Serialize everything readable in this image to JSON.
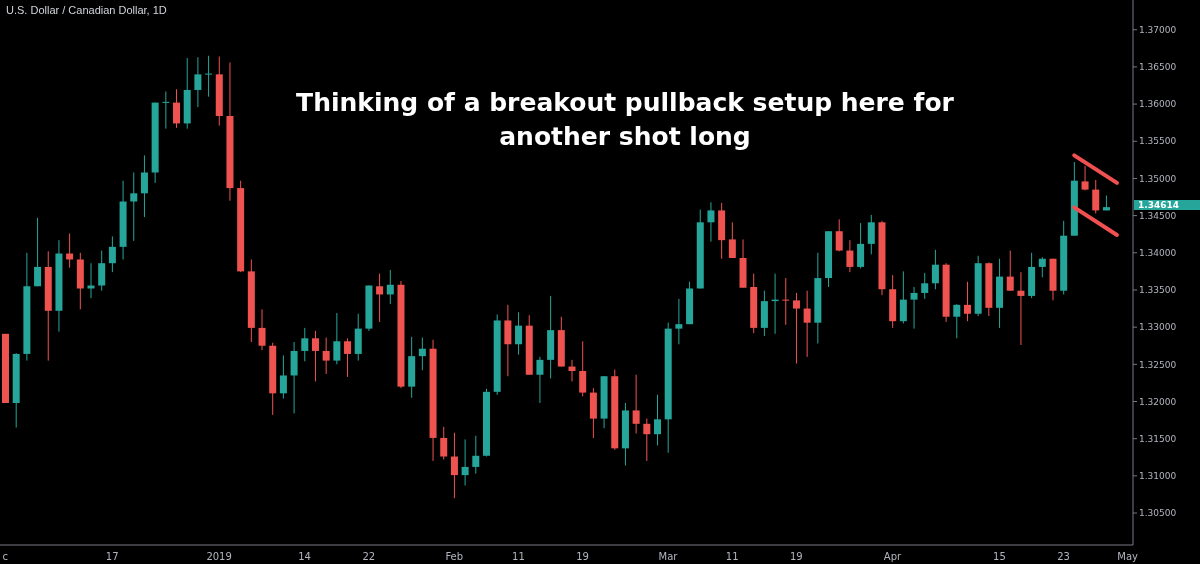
{
  "chart_data": {
    "type": "candlestick",
    "title": "U.S. Dollar / Canadian Dollar, 1D",
    "annotations": [
      "Thinking of a breakout pullback setup here for another shot long",
      "1.34614"
    ],
    "categories": [
      "c",
      null,
      null,
      null,
      null,
      null,
      null,
      null,
      null,
      null,
      "17",
      null,
      null,
      null,
      null,
      null,
      null,
      null,
      null,
      null,
      "2019",
      null,
      null,
      null,
      null,
      null,
      null,
      null,
      "14",
      null,
      null,
      null,
      null,
      null,
      "22",
      null,
      null,
      null,
      null,
      null,
      null,
      null,
      "Feb",
      null,
      null,
      null,
      null,
      null,
      "11",
      null,
      null,
      null,
      null,
      null,
      "19",
      null,
      null,
      null,
      null,
      null,
      null,
      null,
      "Mar",
      null,
      null,
      null,
      null,
      null,
      "11",
      null,
      null,
      null,
      null,
      null,
      "19",
      null,
      null,
      null,
      null,
      null,
      null,
      null,
      null,
      "Apr",
      null,
      null,
      null,
      null,
      null,
      null,
      null,
      null,
      null,
      "15",
      null,
      null,
      null,
      null,
      null,
      "23",
      null,
      null,
      null,
      null,
      null,
      "May"
    ],
    "ohlc": [
      [
        1.3291,
        1.3291,
        1.3198,
        1.3198
      ],
      [
        1.3198,
        1.3265,
        1.3165,
        1.3264
      ],
      [
        1.3264,
        1.34,
        1.3255,
        1.3355
      ],
      [
        1.3355,
        1.3447,
        1.3355,
        1.3381
      ],
      [
        1.3381,
        1.3402,
        1.3255,
        1.3322
      ],
      [
        1.3322,
        1.3417,
        1.3294,
        1.3399
      ],
      [
        1.3399,
        1.3426,
        1.338,
        1.3391
      ],
      [
        1.3391,
        1.34,
        1.3324,
        1.3352
      ],
      [
        1.3352,
        1.3386,
        1.3339,
        1.3356
      ],
      [
        1.3356,
        1.3403,
        1.3349,
        1.3386
      ],
      [
        1.3386,
        1.3422,
        1.3374,
        1.3408
      ],
      [
        1.3408,
        1.3497,
        1.3391,
        1.3469
      ],
      [
        1.3469,
        1.3508,
        1.3416,
        1.348
      ],
      [
        1.348,
        1.3531,
        1.3448,
        1.3508
      ],
      [
        1.3508,
        1.3602,
        1.3494,
        1.3602
      ],
      [
        1.3602,
        1.3617,
        1.3567,
        1.3603
      ],
      [
        1.3602,
        1.362,
        1.3568,
        1.3574
      ],
      [
        1.3574,
        1.3662,
        1.3567,
        1.3619
      ],
      [
        1.3619,
        1.3663,
        1.3596,
        1.364
      ],
      [
        1.364,
        1.3665,
        1.361,
        1.3641
      ],
      [
        1.364,
        1.3664,
        1.3571,
        1.3584
      ],
      [
        1.3584,
        1.3656,
        1.347,
        1.3487
      ],
      [
        1.3487,
        1.3497,
        1.3374,
        1.3375
      ],
      [
        1.3375,
        1.3391,
        1.328,
        1.3299
      ],
      [
        1.3299,
        1.3324,
        1.3269,
        1.3275
      ],
      [
        1.3275,
        1.3279,
        1.3182,
        1.3211
      ],
      [
        1.3211,
        1.3262,
        1.3204,
        1.3235
      ],
      [
        1.3235,
        1.328,
        1.3184,
        1.3268
      ],
      [
        1.3268,
        1.3299,
        1.3254,
        1.3285
      ],
      [
        1.3285,
        1.3295,
        1.3227,
        1.3268
      ],
      [
        1.3268,
        1.3286,
        1.3237,
        1.3255
      ],
      [
        1.3255,
        1.3319,
        1.325,
        1.3281
      ],
      [
        1.3281,
        1.3285,
        1.3233,
        1.3264
      ],
      [
        1.3264,
        1.3318,
        1.3255,
        1.3298
      ],
      [
        1.3298,
        1.3356,
        1.3295,
        1.3356
      ],
      [
        1.3355,
        1.3372,
        1.3307,
        1.3344
      ],
      [
        1.3344,
        1.3377,
        1.3331,
        1.3357
      ],
      [
        1.3357,
        1.3362,
        1.3218,
        1.322
      ],
      [
        1.322,
        1.3287,
        1.3205,
        1.3261
      ],
      [
        1.3261,
        1.3286,
        1.3242,
        1.3271
      ],
      [
        1.3271,
        1.3283,
        1.312,
        1.3151
      ],
      [
        1.3151,
        1.3166,
        1.3122,
        1.3126
      ],
      [
        1.3126,
        1.3158,
        1.307,
        1.3101
      ],
      [
        1.3101,
        1.3149,
        1.3087,
        1.3112
      ],
      [
        1.3112,
        1.3154,
        1.3103,
        1.3127
      ],
      [
        1.3127,
        1.3217,
        1.3126,
        1.3213
      ],
      [
        1.3213,
        1.3317,
        1.3209,
        1.3309
      ],
      [
        1.3309,
        1.333,
        1.3234,
        1.3277
      ],
      [
        1.3277,
        1.332,
        1.3263,
        1.3302
      ],
      [
        1.3302,
        1.3316,
        1.3236,
        1.3236
      ],
      [
        1.3236,
        1.326,
        1.3198,
        1.3256
      ],
      [
        1.3256,
        1.3342,
        1.3231,
        1.3296
      ],
      [
        1.3296,
        1.3314,
        1.3247,
        1.3247
      ],
      [
        1.3247,
        1.3256,
        1.3227,
        1.3241
      ],
      [
        1.3241,
        1.3281,
        1.3207,
        1.3212
      ],
      [
        1.3212,
        1.3218,
        1.3151,
        1.3177
      ],
      [
        1.3177,
        1.3234,
        1.3164,
        1.3234
      ],
      [
        1.3234,
        1.3243,
        1.3135,
        1.3137
      ],
      [
        1.3137,
        1.3198,
        1.3114,
        1.3188
      ],
      [
        1.3188,
        1.3236,
        1.3157,
        1.317
      ],
      [
        1.317,
        1.3177,
        1.312,
        1.3156
      ],
      [
        1.3156,
        1.3209,
        1.3141,
        1.3176
      ],
      [
        1.3176,
        1.3306,
        1.3131,
        1.3298
      ],
      [
        1.3298,
        1.3338,
        1.3277,
        1.3304
      ],
      [
        1.3304,
        1.3361,
        1.3304,
        1.3352
      ],
      [
        1.3352,
        1.3458,
        1.3352,
        1.3441
      ],
      [
        1.3441,
        1.3468,
        1.3415,
        1.3457
      ],
      [
        1.3457,
        1.3467,
        1.3392,
        1.3417
      ],
      [
        1.3418,
        1.3441,
        1.3393,
        1.3393
      ],
      [
        1.3393,
        1.3418,
        1.3353,
        1.3353
      ],
      [
        1.3354,
        1.3372,
        1.3292,
        1.3299
      ],
      [
        1.3299,
        1.3349,
        1.3288,
        1.3335
      ],
      [
        1.3335,
        1.3372,
        1.3291,
        1.3337
      ],
      [
        1.3337,
        1.3366,
        1.3303,
        1.3336
      ],
      [
        1.3336,
        1.3346,
        1.3251,
        1.3325
      ],
      [
        1.3325,
        1.3349,
        1.326,
        1.3306
      ],
      [
        1.3306,
        1.34,
        1.3278,
        1.3366
      ],
      [
        1.3366,
        1.3429,
        1.3354,
        1.3429
      ],
      [
        1.3429,
        1.3445,
        1.3402,
        1.3403
      ],
      [
        1.3403,
        1.3417,
        1.3374,
        1.3381
      ],
      [
        1.3381,
        1.344,
        1.3379,
        1.3412
      ],
      [
        1.3412,
        1.3451,
        1.3398,
        1.3441
      ],
      [
        1.3441,
        1.3443,
        1.3343,
        1.3351
      ],
      [
        1.3351,
        1.337,
        1.3299,
        1.3308
      ],
      [
        1.3308,
        1.3375,
        1.3305,
        1.3337
      ],
      [
        1.3337,
        1.3354,
        1.3298,
        1.3346
      ],
      [
        1.3346,
        1.3373,
        1.3338,
        1.3359
      ],
      [
        1.3359,
        1.3404,
        1.3351,
        1.3384
      ],
      [
        1.3384,
        1.3386,
        1.3307,
        1.3314
      ],
      [
        1.3314,
        1.3331,
        1.3285,
        1.333
      ],
      [
        1.333,
        1.3361,
        1.3308,
        1.3318
      ],
      [
        1.3318,
        1.3396,
        1.3315,
        1.3386
      ],
      [
        1.3386,
        1.3387,
        1.3315,
        1.3326
      ],
      [
        1.3326,
        1.3392,
        1.3299,
        1.3368
      ],
      [
        1.3368,
        1.3403,
        1.3349,
        1.3349
      ],
      [
        1.3349,
        1.3374,
        1.3276,
        1.3342
      ],
      [
        1.3342,
        1.34,
        1.3339,
        1.3381
      ],
      [
        1.3381,
        1.3394,
        1.3367,
        1.3392
      ],
      [
        1.3392,
        1.3392,
        1.3336,
        1.3349
      ],
      [
        1.3349,
        1.3443,
        1.3344,
        1.3423
      ],
      [
        1.3423,
        1.3522,
        1.3423,
        1.3497
      ],
      [
        1.3496,
        1.3517,
        1.3484,
        1.3485
      ],
      [
        1.3485,
        1.3498,
        1.3453,
        1.3457
      ],
      [
        1.3457,
        1.3477,
        1.3457,
        1.34614
      ],
      null,
      null
    ],
    "colors": [
      "#ef5350",
      "#26a69a",
      "#26a69a",
      "#26a69a",
      "#ef5350",
      "#26a69a",
      "#ef5350",
      "#ef5350",
      "#26a69a",
      "#26a69a",
      "#26a69a",
      "#26a69a",
      "#26a69a",
      "#26a69a",
      "#26a69a",
      "#26a69a",
      "#ef5350",
      "#26a69a",
      "#26a69a",
      "#26a69a",
      "#ef5350",
      "#ef5350",
      "#ef5350",
      "#ef5350",
      "#ef5350",
      "#ef5350",
      "#26a69a",
      "#26a69a",
      "#26a69a",
      "#ef5350",
      "#ef5350",
      "#26a69a",
      "#ef5350",
      "#26a69a",
      "#26a69a",
      "#ef5350",
      "#26a69a",
      "#ef5350",
      "#26a69a",
      "#26a69a",
      "#ef5350",
      "#ef5350",
      "#ef5350",
      "#26a69a",
      "#26a69a",
      "#26a69a",
      "#26a69a",
      "#ef5350",
      "#26a69a",
      "#ef5350",
      "#26a69a",
      "#26a69a",
      "#ef5350",
      "#ef5350",
      "#ef5350",
      "#ef5350",
      "#26a69a",
      "#ef5350",
      "#26a69a",
      "#ef5350",
      "#ef5350",
      "#26a69a",
      "#26a69a",
      "#26a69a",
      "#26a69a",
      "#26a69a",
      "#26a69a",
      "#ef5350",
      "#ef5350",
      "#ef5350",
      "#ef5350",
      "#26a69a",
      "#26a69a",
      "#ef5350",
      "#ef5350",
      "#ef5350",
      "#26a69a",
      "#26a69a",
      "#ef5350",
      "#ef5350",
      "#26a69a",
      "#26a69a",
      "#ef5350",
      "#ef5350",
      "#26a69a",
      "#26a69a",
      "#26a69a",
      "#26a69a",
      "#ef5350",
      "#26a69a",
      "#ef5350",
      "#26a69a",
      "#ef5350",
      "#26a69a",
      "#ef5350",
      "#ef5350",
      "#26a69a",
      "#26a69a",
      "#ef5350",
      "#26a69a",
      "#26a69a",
      "#ef5350",
      "#ef5350",
      "#26a69a",
      null,
      null
    ],
    "series": [
      {
        "type": "line",
        "color": "#f0504f",
        "values": [
          null,
          null,
          null,
          null,
          null,
          null,
          null,
          null,
          null,
          null,
          null,
          null,
          null,
          null,
          null,
          null,
          null,
          null,
          null,
          null,
          null,
          null,
          null,
          null,
          null,
          null,
          null,
          null,
          null,
          null,
          null,
          null,
          null,
          null,
          null,
          null,
          null,
          null,
          null,
          null,
          null,
          null,
          null,
          null,
          null,
          null,
          null,
          null,
          null,
          null,
          null,
          null,
          null,
          null,
          null,
          null,
          null,
          null,
          null,
          null,
          null,
          null,
          null,
          null,
          null,
          null,
          null,
          null,
          null,
          null,
          null,
          null,
          null,
          null,
          null,
          null,
          null,
          null,
          null,
          null,
          null,
          null,
          null,
          null,
          null,
          null,
          null,
          null,
          null,
          null,
          null,
          null,
          null,
          null,
          null,
          null,
          null,
          null,
          null,
          null,
          1.3531,
          null,
          null,
          null,
          1.3494,
          null
        ]
      },
      {
        "type": "line",
        "color": "#f0504f",
        "values": [
          null,
          null,
          null,
          null,
          null,
          null,
          null,
          null,
          null,
          null,
          null,
          null,
          null,
          null,
          null,
          null,
          null,
          null,
          null,
          null,
          null,
          null,
          null,
          null,
          null,
          null,
          null,
          null,
          null,
          null,
          null,
          null,
          null,
          null,
          null,
          null,
          null,
          null,
          null,
          null,
          null,
          null,
          null,
          null,
          null,
          null,
          null,
          null,
          null,
          null,
          null,
          null,
          null,
          null,
          null,
          null,
          null,
          null,
          null,
          null,
          null,
          null,
          null,
          null,
          null,
          null,
          null,
          null,
          null,
          null,
          null,
          null,
          null,
          null,
          null,
          null,
          null,
          null,
          null,
          null,
          null,
          null,
          null,
          null,
          null,
          null,
          null,
          null,
          null,
          null,
          null,
          null,
          null,
          null,
          null,
          null,
          null,
          null,
          null,
          null,
          1.3461,
          null,
          null,
          null,
          1.3424,
          null
        ]
      }
    ],
    "ylim": [
      1.3007,
      1.374
    ],
    "yticks": [
      {
        "value": 1.305,
        "label": "1.30500"
      },
      {
        "value": 1.31,
        "label": "1.31000"
      },
      {
        "value": 1.315,
        "label": "1.31500"
      },
      {
        "value": 1.32,
        "label": "1.32000"
      },
      {
        "value": 1.325,
        "label": "1.32500"
      },
      {
        "value": 1.33,
        "label": "1.33000"
      },
      {
        "value": 1.335,
        "label": "1.33500"
      },
      {
        "value": 1.34,
        "label": "1.34000"
      },
      {
        "value": 1.345,
        "label": "1.34500"
      },
      {
        "value": 1.35,
        "label": "1.35000"
      },
      {
        "value": 1.355,
        "label": "1.35500"
      },
      {
        "value": 1.36,
        "label": "1.36000"
      },
      {
        "value": 1.365,
        "label": "1.36500"
      },
      {
        "value": 1.37,
        "label": "1.37000"
      }
    ],
    "grid": false
  }
}
